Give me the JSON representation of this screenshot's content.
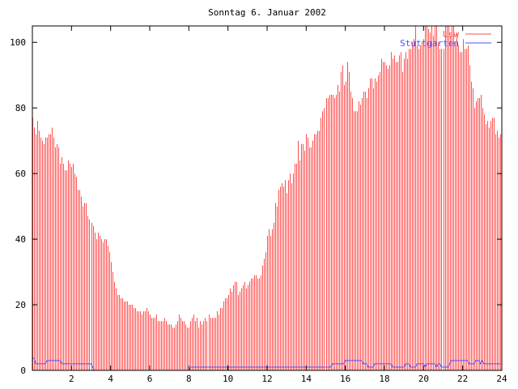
{
  "chart_data": {
    "type": "bar",
    "title": "Sonntag 6. Januar 2002",
    "xlabel": "",
    "ylabel": "",
    "xlim": [
      0,
      24
    ],
    "ylim": [
      0,
      105
    ],
    "x_interval_minutes": 5,
    "xticks": [
      "2",
      "4",
      "6",
      "8",
      "10",
      "12",
      "14",
      "16",
      "18",
      "20",
      "22",
      "24"
    ],
    "yticks": [
      "0",
      "20",
      "40",
      "60",
      "80",
      "100"
    ],
    "grid": false,
    "legend_position": "top-right",
    "series": [
      {
        "name": "Usw",
        "style": "impulses",
        "color": "#ff4f4f",
        "values": [
          77,
          74,
          72,
          76,
          73,
          71,
          70,
          69,
          71,
          71,
          72,
          72,
          74,
          71,
          68,
          69,
          68,
          63,
          65,
          63,
          61,
          61,
          64,
          63,
          62,
          63,
          60,
          59,
          55,
          55,
          53,
          50,
          51,
          51,
          47,
          46,
          45,
          44,
          42,
          40,
          42,
          41,
          40,
          39,
          40,
          40,
          38,
          36,
          33,
          30,
          27,
          25,
          23,
          23,
          22,
          22,
          21,
          21,
          21,
          20,
          20,
          20,
          19,
          19,
          18,
          18,
          18,
          17,
          18,
          18,
          19,
          18,
          17,
          16,
          16,
          16,
          17,
          15,
          15,
          15,
          15,
          16,
          15,
          14,
          14,
          14,
          13,
          13,
          14,
          15,
          17,
          16,
          15,
          15,
          14,
          13,
          13,
          15,
          16,
          17,
          15,
          16,
          13,
          15,
          14,
          15,
          16,
          15,
          17,
          16,
          16,
          16,
          16,
          18,
          17,
          19,
          19,
          21,
          22,
          22,
          23,
          25,
          24,
          26,
          27,
          27,
          23,
          24,
          25,
          26,
          27,
          25,
          26,
          27,
          28,
          28,
          29,
          29,
          28,
          28,
          29,
          32,
          34,
          36,
          41,
          43,
          41,
          43,
          45,
          51,
          50,
          55,
          56,
          57,
          56,
          58,
          54,
          58,
          60,
          57,
          60,
          63,
          63,
          70,
          64,
          69,
          69,
          67,
          72,
          71,
          68,
          68,
          70,
          72,
          72,
          73,
          73,
          77,
          79,
          80,
          83,
          83,
          84,
          84,
          84,
          83,
          84,
          87,
          85,
          91,
          93,
          87,
          88,
          94,
          91,
          85,
          83,
          79,
          79,
          79,
          82,
          81,
          83,
          85,
          85,
          83,
          86,
          89,
          89,
          86,
          89,
          88,
          90,
          91,
          95,
          94,
          94,
          93,
          92,
          93,
          97,
          95,
          96,
          94,
          94,
          96,
          97,
          91,
          95,
          97,
          95,
          98,
          98,
          100,
          101,
          105,
          99,
          98,
          99,
          100,
          101,
          105,
          105,
          104,
          103,
          105,
          102,
          105,
          105,
          100,
          98,
          98,
          98,
          105,
          105,
          105,
          102,
          105,
          105,
          100,
          103,
          99,
          97,
          97,
          101,
          98,
          98,
          99,
          93,
          88,
          86,
          80,
          82,
          83,
          83,
          84,
          80,
          78,
          75,
          76,
          74,
          76,
          77,
          77,
          72,
          73,
          71,
          72
        ]
      },
      {
        "name": "Stuttgarten",
        "style": "lines",
        "color": "#5050ff",
        "values": [
          3.7,
          3.7,
          2,
          2,
          2,
          2,
          2,
          2,
          2,
          3,
          3,
          3,
          3,
          3,
          3,
          3,
          3,
          3,
          2,
          2,
          2,
          2,
          2,
          2,
          2,
          2,
          2,
          2,
          2,
          2,
          2,
          2,
          2,
          2,
          2,
          2,
          2,
          1,
          0,
          0,
          0,
          0,
          0,
          0,
          0,
          0,
          0,
          0,
          0,
          0,
          0,
          0,
          0,
          0,
          0,
          0,
          0,
          0,
          0,
          0,
          0,
          0,
          0,
          0,
          0,
          0,
          0,
          0,
          0,
          0,
          0,
          0,
          0,
          0,
          0,
          0,
          0,
          0,
          0,
          0,
          0,
          0,
          0,
          0,
          0,
          0,
          0,
          0,
          0,
          0,
          0,
          0,
          0,
          0,
          0,
          0,
          0,
          1,
          1,
          1,
          1,
          1,
          1,
          1,
          1,
          1,
          1,
          1,
          1,
          1,
          1,
          1,
          1,
          1,
          1,
          1,
          1,
          1,
          1,
          1,
          1,
          1,
          1,
          1,
          1,
          1,
          1,
          1,
          1,
          1,
          1,
          1,
          1,
          1,
          1,
          1,
          1,
          1,
          1,
          1,
          1,
          1,
          1,
          1,
          1,
          1,
          1,
          1,
          1,
          1,
          1,
          1,
          1,
          1,
          1,
          1,
          1,
          1,
          1,
          1,
          1,
          1,
          1,
          1,
          1,
          1,
          1,
          1,
          1,
          1,
          1,
          1,
          1,
          1,
          1,
          1,
          1,
          1,
          1,
          1,
          1,
          1,
          1,
          1,
          2,
          2,
          2,
          2,
          2,
          2,
          2,
          2,
          3,
          3,
          3,
          3,
          3,
          3,
          3,
          3,
          3,
          3,
          3,
          2,
          2,
          2,
          1,
          1,
          1,
          1,
          2,
          2,
          2,
          2,
          2,
          2,
          2,
          2,
          2,
          2,
          2,
          1,
          1,
          1,
          1,
          1,
          1,
          1,
          1,
          2,
          2,
          2,
          1,
          1,
          1,
          1,
          2,
          2,
          2,
          2,
          2,
          1,
          2,
          2,
          2,
          2,
          2,
          2,
          1,
          2,
          2,
          1,
          1,
          1,
          1,
          1,
          2,
          3,
          3,
          3,
          3,
          3,
          3,
          3,
          3,
          3,
          3,
          3,
          2,
          2,
          2,
          2,
          3,
          3,
          3,
          2,
          3,
          2,
          2,
          2,
          2,
          2,
          2,
          2,
          2,
          2,
          2,
          2
        ]
      }
    ]
  }
}
